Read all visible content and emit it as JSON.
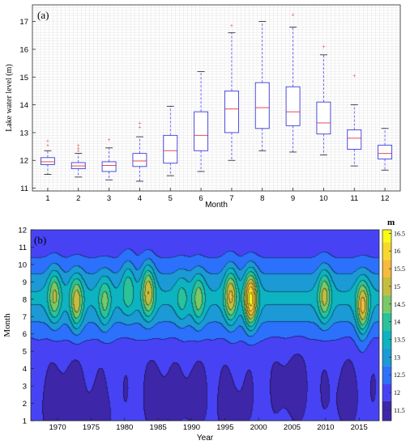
{
  "chart_data": [
    {
      "type": "box",
      "panel_label": "(a)",
      "xlabel": "Month",
      "ylabel": "Lake water level (m)",
      "categories": [
        "1",
        "2",
        "3",
        "4",
        "5",
        "6",
        "7",
        "8",
        "9",
        "10",
        "11",
        "12"
      ],
      "ylim": [
        10.9,
        17.6
      ],
      "yticks": [
        "11",
        "12",
        "13",
        "14",
        "15",
        "16",
        "17"
      ],
      "grid": true,
      "boxes": [
        {
          "whisker_low": 11.5,
          "q1": 11.85,
          "median": 11.95,
          "q3": 12.1,
          "whisker_high": 12.35,
          "outliers": [
            12.55,
            12.7
          ]
        },
        {
          "whisker_low": 11.4,
          "q1": 11.7,
          "median": 11.8,
          "q3": 11.92,
          "whisker_high": 12.25,
          "outliers": [
            12.35,
            12.45,
            12.55
          ]
        },
        {
          "whisker_low": 11.3,
          "q1": 11.6,
          "median": 11.82,
          "q3": 11.95,
          "whisker_high": 12.45,
          "outliers": [
            12.75
          ]
        },
        {
          "whisker_low": 11.25,
          "q1": 11.78,
          "median": 11.98,
          "q3": 12.25,
          "whisker_high": 12.85,
          "outliers": [
            13.2,
            13.35
          ]
        },
        {
          "whisker_low": 11.45,
          "q1": 11.9,
          "median": 12.35,
          "q3": 12.9,
          "whisker_high": 13.95,
          "outliers": []
        },
        {
          "whisker_low": 11.6,
          "q1": 12.35,
          "median": 12.9,
          "q3": 13.75,
          "whisker_high": 15.2,
          "outliers": []
        },
        {
          "whisker_low": 12.0,
          "q1": 13.0,
          "median": 13.85,
          "q3": 14.5,
          "whisker_high": 16.6,
          "outliers": [
            16.85
          ]
        },
        {
          "whisker_low": 12.35,
          "q1": 13.15,
          "median": 13.9,
          "q3": 14.8,
          "whisker_high": 17.0,
          "outliers": []
        },
        {
          "whisker_low": 12.3,
          "q1": 13.25,
          "median": 13.75,
          "q3": 14.65,
          "whisker_high": 16.8,
          "outliers": [
            17.25
          ]
        },
        {
          "whisker_low": 12.2,
          "q1": 12.95,
          "median": 13.35,
          "q3": 14.1,
          "whisker_high": 15.8,
          "outliers": [
            16.1
          ]
        },
        {
          "whisker_low": 11.8,
          "q1": 12.4,
          "median": 12.8,
          "q3": 13.1,
          "whisker_high": 14.0,
          "outliers": [
            15.05
          ]
        },
        {
          "whisker_low": 11.65,
          "q1": 12.05,
          "median": 12.25,
          "q3": 12.55,
          "whisker_high": 13.15,
          "outliers": []
        }
      ]
    },
    {
      "type": "heatmap",
      "subtype": "filled-contour",
      "panel_label": "(b)",
      "xlabel": "Year",
      "ylabel": "Month",
      "unit": "m",
      "xlim": [
        1966,
        2018
      ],
      "ylim": [
        1,
        12
      ],
      "xticks": [
        "1970",
        "1975",
        "1980",
        "1985",
        "1990",
        "1995",
        "2000",
        "2005",
        "2010",
        "2015"
      ],
      "yticks": [
        "1",
        "2",
        "3",
        "4",
        "5",
        "6",
        "7",
        "8",
        "9",
        "10",
        "11",
        "12"
      ],
      "colorbar_ticks": [
        "11.5",
        "12",
        "12.5",
        "13",
        "13.5",
        "14",
        "14.5",
        "15",
        "15.5",
        "16",
        "16.5"
      ],
      "colorbar_range": [
        11.2,
        16.6
      ],
      "contour_levels": [
        11.75,
        12.25,
        12.75,
        13.25,
        13.75,
        14.25,
        14.75,
        15.25,
        15.75,
        16.25
      ],
      "colormap": [
        "#3e26a8",
        "#4743f5",
        "#2c71fb",
        "#1b9ad6",
        "#0db3c1",
        "#2ac29a",
        "#7bc867",
        "#c4bd3f",
        "#f6ba3e",
        "#f9d82e",
        "#f9fb15"
      ],
      "summer_peaks": [
        {
          "year": 1969.5,
          "month": 8.2,
          "value": 14.9
        },
        {
          "year": 1972.8,
          "month": 7.8,
          "value": 15.2
        },
        {
          "year": 1977.0,
          "month": 7.8,
          "value": 14.5
        },
        {
          "year": 1980.5,
          "month": 8.8,
          "value": 14.3
        },
        {
          "year": 1983.5,
          "month": 8.5,
          "value": 15.3
        },
        {
          "year": 1988.5,
          "month": 8.0,
          "value": 14.0
        },
        {
          "year": 1991.0,
          "month": 8.0,
          "value": 14.6
        },
        {
          "year": 1995.8,
          "month": 8.2,
          "value": 15.4
        },
        {
          "year": 1998.8,
          "month": 8.0,
          "value": 16.5
        },
        {
          "year": 2009.8,
          "month": 8.2,
          "value": 15.0
        },
        {
          "year": 2015.5,
          "month": 7.5,
          "value": 15.6
        }
      ],
      "winter_lows": [
        {
          "year": 1969.5,
          "month": 2.0,
          "value": 11.45
        },
        {
          "year": 1972.0,
          "month": 2.5,
          "value": 11.3
        },
        {
          "year": 1976.0,
          "month": 1.5,
          "value": 11.4
        },
        {
          "year": 1985.0,
          "month": 2.5,
          "value": 11.3
        },
        {
          "year": 1990.0,
          "month": 2.5,
          "value": 11.35
        },
        {
          "year": 1996.0,
          "month": 2.0,
          "value": 11.4
        },
        {
          "year": 2005.0,
          "month": 3.0,
          "value": 11.2
        },
        {
          "year": 2013.0,
          "month": 2.5,
          "value": 11.4
        }
      ]
    }
  ]
}
